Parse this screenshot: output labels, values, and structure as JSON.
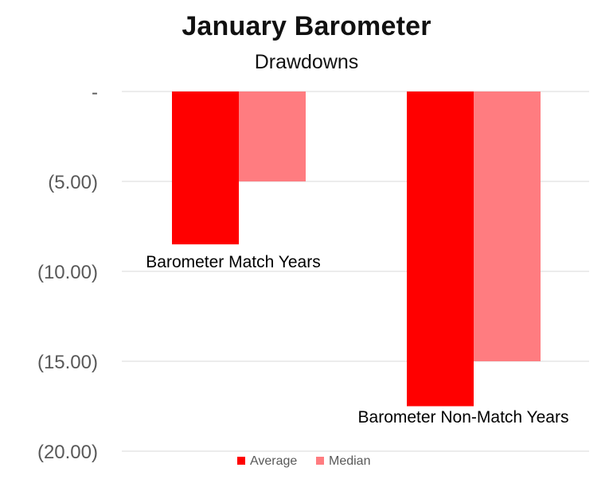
{
  "chart_data": {
    "type": "bar",
    "title": "January Barometer",
    "subtitle": "Drawdowns",
    "categories": [
      "Barometer Match Years",
      "Barometer Non-Match Years"
    ],
    "series": [
      {
        "name": "Average",
        "values": [
          -8.5,
          -17.5
        ],
        "color": "#FF0000"
      },
      {
        "name": "Median",
        "values": [
          -5.0,
          -15.0
        ],
        "color": "#FF7C80"
      }
    ],
    "ylim": [
      -20,
      0
    ],
    "yticks": [
      0,
      -5,
      -10,
      -15,
      -20
    ],
    "ytick_labels": [
      "-",
      "(5.00)",
      "(10.00)",
      "(15.00)",
      "(20.00)"
    ],
    "grid": true,
    "legend_position": "bottom",
    "xlabel": "",
    "ylabel": ""
  }
}
